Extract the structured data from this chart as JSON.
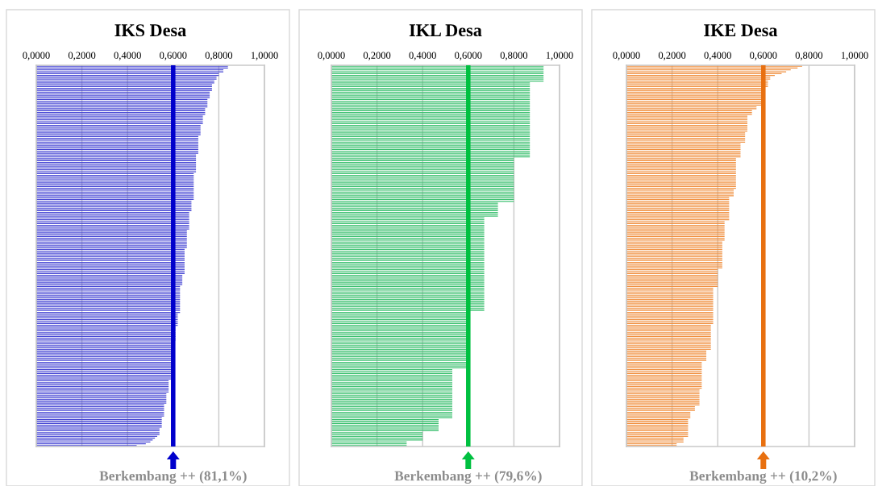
{
  "chart_data": [
    {
      "type": "bar",
      "orientation": "horizontal",
      "title": "IKS Desa",
      "tick_labels": "x",
      "grid": "x",
      "xlim": [
        0,
        1
      ],
      "xticks": [
        {
          "value": 0,
          "label": "0,0000"
        },
        {
          "value": 0.2,
          "label": "0,2000"
        },
        {
          "value": 0.4,
          "label": "0,4000"
        },
        {
          "value": 0.6,
          "label": "0,6000"
        },
        {
          "value": 0.8,
          "label": "0,8000"
        },
        {
          "value": 1,
          "label": "1,0000"
        }
      ],
      "categories": [
        null,
        null,
        null,
        null,
        null,
        null,
        null,
        null,
        null,
        null,
        null,
        null,
        null,
        null,
        null,
        null,
        null,
        null,
        null,
        null,
        null,
        null,
        null,
        null,
        null,
        null,
        null,
        null,
        null,
        null,
        null,
        null,
        null,
        null,
        null,
        null,
        null,
        null,
        null,
        null,
        null,
        null,
        null,
        null,
        null,
        null,
        null,
        null,
        null,
        null,
        null,
        null,
        null,
        null,
        null,
        null,
        null,
        null,
        null,
        null,
        null,
        null,
        null,
        null,
        null,
        null,
        null,
        null,
        null,
        null,
        null,
        null,
        null,
        null,
        null,
        null,
        null,
        null,
        null,
        null,
        null,
        null,
        null,
        null,
        null,
        null,
        null,
        null,
        null,
        null,
        null,
        null,
        null,
        null,
        null,
        null,
        null,
        null,
        null,
        null,
        null,
        null,
        null,
        null,
        null,
        null,
        null,
        null,
        null,
        null,
        null,
        null,
        null,
        null,
        null,
        null,
        null,
        null,
        null,
        null,
        null,
        null,
        null,
        null,
        null,
        null,
        null,
        null,
        null,
        null,
        null,
        null,
        null,
        null,
        null,
        null,
        null,
        null,
        null,
        null,
        null,
        null,
        null,
        null,
        null,
        null,
        null,
        null,
        null,
        null,
        null,
        null,
        null,
        null,
        null,
        null,
        null,
        null,
        null,
        null,
        null,
        null,
        null,
        null,
        null,
        null,
        null,
        null,
        null,
        null,
        null,
        null,
        null,
        null,
        null,
        null,
        null,
        null,
        null,
        null,
        null,
        null,
        null,
        null,
        null,
        null,
        null,
        null,
        null,
        null,
        null,
        null,
        null,
        null,
        null,
        null,
        null,
        null,
        null,
        null,
        null,
        null,
        null,
        null,
        null,
        null
      ],
      "series": [
        {
          "color": "#4848d4",
          "values": [
            0.84,
            0.84,
            0.82,
            0.82,
            0.8,
            0.8,
            0.79,
            0.79,
            0.78,
            0.78,
            0.77,
            0.77,
            0.77,
            0.77,
            0.76,
            0.76,
            0.76,
            0.76,
            0.75,
            0.75,
            0.75,
            0.75,
            0.75,
            0.74,
            0.74,
            0.74,
            0.74,
            0.73,
            0.73,
            0.73,
            0.73,
            0.73,
            0.72,
            0.72,
            0.72,
            0.72,
            0.72,
            0.72,
            0.71,
            0.71,
            0.71,
            0.71,
            0.71,
            0.71,
            0.71,
            0.71,
            0.71,
            0.71,
            0.7,
            0.7,
            0.7,
            0.7,
            0.7,
            0.7,
            0.7,
            0.7,
            0.7,
            0.7,
            0.69,
            0.69,
            0.69,
            0.69,
            0.69,
            0.69,
            0.69,
            0.69,
            0.69,
            0.69,
            0.69,
            0.69,
            0.69,
            0.69,
            0.69,
            0.68,
            0.68,
            0.68,
            0.68,
            0.68,
            0.68,
            0.67,
            0.67,
            0.67,
            0.67,
            0.67,
            0.67,
            0.67,
            0.67,
            0.67,
            0.67,
            0.66,
            0.66,
            0.66,
            0.66,
            0.66,
            0.66,
            0.66,
            0.66,
            0.66,
            0.66,
            0.65,
            0.65,
            0.65,
            0.65,
            0.65,
            0.65,
            0.65,
            0.65,
            0.65,
            0.65,
            0.65,
            0.65,
            0.65,
            0.65,
            0.64,
            0.64,
            0.64,
            0.64,
            0.64,
            0.64,
            0.63,
            0.63,
            0.63,
            0.63,
            0.63,
            0.63,
            0.63,
            0.63,
            0.63,
            0.63,
            0.63,
            0.63,
            0.63,
            0.63,
            0.63,
            0.62,
            0.62,
            0.62,
            0.62,
            0.62,
            0.62,
            0.62,
            0.61,
            0.61,
            0.61,
            0.61,
            0.61,
            0.61,
            0.61,
            0.61,
            0.6,
            0.6,
            0.6,
            0.6,
            0.6,
            0.6,
            0.6,
            0.6,
            0.6,
            0.6,
            0.6,
            0.6,
            0.6,
            0.6,
            0.6,
            0.6,
            0.6,
            0.6,
            0.59,
            0.59,
            0.59,
            0.58,
            0.58,
            0.58,
            0.58,
            0.58,
            0.58,
            0.58,
            0.57,
            0.57,
            0.57,
            0.57,
            0.57,
            0.57,
            0.56,
            0.56,
            0.56,
            0.56,
            0.56,
            0.56,
            0.56,
            0.55,
            0.55,
            0.55,
            0.55,
            0.55,
            0.55,
            0.54,
            0.54,
            0.54,
            0.54,
            0.53,
            0.52,
            0.51,
            0.5,
            0.48,
            0.44
          ]
        }
      ],
      "ref_lines": [
        {
          "axis": "x",
          "value": 0.6,
          "color": "#0000cc"
        }
      ],
      "annotations": [
        "Berkembang ++ (81,1%)"
      ]
    },
    {
      "type": "bar",
      "orientation": "horizontal",
      "title": "IKL Desa",
      "tick_labels": "x",
      "grid": "x",
      "xlim": [
        0,
        1
      ],
      "xticks": [
        {
          "value": 0,
          "label": "0,0000"
        },
        {
          "value": 0.2,
          "label": "0,2000"
        },
        {
          "value": 0.4,
          "label": "0,4000"
        },
        {
          "value": 0.6,
          "label": "0,6000"
        },
        {
          "value": 0.8,
          "label": "0,8000"
        },
        {
          "value": 1,
          "label": "1,0000"
        }
      ],
      "categories": [
        null,
        null,
        null,
        null,
        null,
        null,
        null,
        null,
        null,
        null,
        null,
        null,
        null,
        null,
        null,
        null,
        null,
        null,
        null,
        null,
        null,
        null,
        null,
        null,
        null,
        null,
        null,
        null,
        null,
        null,
        null,
        null,
        null,
        null,
        null,
        null,
        null,
        null,
        null,
        null,
        null,
        null,
        null,
        null,
        null,
        null,
        null,
        null,
        null,
        null,
        null,
        null,
        null,
        null,
        null,
        null,
        null,
        null,
        null,
        null,
        null,
        null,
        null,
        null,
        null,
        null,
        null,
        null,
        null,
        null,
        null,
        null,
        null,
        null,
        null,
        null,
        null,
        null,
        null,
        null,
        null,
        null,
        null,
        null,
        null,
        null,
        null,
        null,
        null,
        null,
        null,
        null,
        null,
        null,
        null,
        null,
        null,
        null,
        null,
        null,
        null,
        null,
        null,
        null,
        null,
        null,
        null,
        null,
        null,
        null,
        null,
        null,
        null,
        null,
        null,
        null,
        null,
        null,
        null,
        null,
        null,
        null,
        null,
        null,
        null,
        null,
        null,
        null,
        null,
        null,
        null,
        null,
        null,
        null,
        null,
        null,
        null,
        null,
        null,
        null,
        null,
        null,
        null,
        null,
        null,
        null,
        null,
        null,
        null,
        null,
        null,
        null,
        null,
        null,
        null,
        null,
        null,
        null,
        null,
        null,
        null,
        null,
        null,
        null,
        null,
        null,
        null,
        null,
        null,
        null,
        null,
        null,
        null,
        null,
        null,
        null,
        null,
        null,
        null,
        null,
        null,
        null,
        null,
        null,
        null,
        null,
        null,
        null,
        null,
        null,
        null,
        null,
        null,
        null,
        null,
        null,
        null,
        null,
        null,
        null,
        null,
        null,
        null,
        null,
        null,
        null
      ],
      "series": [
        {
          "color": "#3cc070",
          "values": [
            0.93,
            0.93,
            0.93,
            0.93,
            0.93,
            0.93,
            0.93,
            0.93,
            0.93,
            0.87,
            0.87,
            0.87,
            0.87,
            0.87,
            0.87,
            0.87,
            0.87,
            0.87,
            0.87,
            0.87,
            0.87,
            0.87,
            0.87,
            0.87,
            0.87,
            0.87,
            0.87,
            0.87,
            0.87,
            0.87,
            0.87,
            0.87,
            0.87,
            0.87,
            0.87,
            0.87,
            0.87,
            0.87,
            0.87,
            0.87,
            0.87,
            0.87,
            0.87,
            0.87,
            0.87,
            0.87,
            0.87,
            0.87,
            0.87,
            0.87,
            0.8,
            0.8,
            0.8,
            0.8,
            0.8,
            0.8,
            0.8,
            0.8,
            0.8,
            0.8,
            0.8,
            0.8,
            0.8,
            0.8,
            0.8,
            0.8,
            0.8,
            0.8,
            0.8,
            0.8,
            0.8,
            0.8,
            0.8,
            0.8,
            0.73,
            0.73,
            0.73,
            0.73,
            0.73,
            0.73,
            0.73,
            0.73,
            0.67,
            0.67,
            0.67,
            0.67,
            0.67,
            0.67,
            0.67,
            0.67,
            0.67,
            0.67,
            0.67,
            0.67,
            0.67,
            0.67,
            0.67,
            0.67,
            0.67,
            0.67,
            0.67,
            0.67,
            0.67,
            0.67,
            0.67,
            0.67,
            0.67,
            0.67,
            0.67,
            0.67,
            0.67,
            0.67,
            0.67,
            0.67,
            0.67,
            0.67,
            0.67,
            0.67,
            0.67,
            0.67,
            0.67,
            0.67,
            0.67,
            0.67,
            0.67,
            0.67,
            0.67,
            0.67,
            0.67,
            0.67,
            0.67,
            0.67,
            0.67,
            0.6,
            0.6,
            0.6,
            0.6,
            0.6,
            0.6,
            0.6,
            0.6,
            0.6,
            0.6,
            0.6,
            0.6,
            0.6,
            0.6,
            0.6,
            0.6,
            0.6,
            0.6,
            0.6,
            0.6,
            0.6,
            0.6,
            0.6,
            0.6,
            0.6,
            0.6,
            0.6,
            0.6,
            0.6,
            0.6,
            0.6,
            0.53,
            0.53,
            0.53,
            0.53,
            0.53,
            0.53,
            0.53,
            0.53,
            0.53,
            0.53,
            0.53,
            0.53,
            0.53,
            0.53,
            0.53,
            0.53,
            0.53,
            0.53,
            0.53,
            0.53,
            0.53,
            0.53,
            0.53,
            0.53,
            0.53,
            0.53,
            0.53,
            0.47,
            0.47,
            0.47,
            0.47,
            0.47,
            0.47,
            0.47,
            0.4,
            0.4,
            0.4,
            0.4,
            0.4,
            0.33,
            0.33,
            0.33
          ]
        }
      ],
      "ref_lines": [
        {
          "axis": "x",
          "value": 0.6,
          "color": "#00c040"
        }
      ],
      "annotations": [
        "Berkembang ++ (79,6%)"
      ]
    },
    {
      "type": "bar",
      "orientation": "horizontal",
      "title": "IKE Desa",
      "tick_labels": "x",
      "grid": "x",
      "xlim": [
        0,
        1
      ],
      "xticks": [
        {
          "value": 0,
          "label": "0,0000"
        },
        {
          "value": 0.2,
          "label": "0,2000"
        },
        {
          "value": 0.4,
          "label": "0,4000"
        },
        {
          "value": 0.6,
          "label": "0,6000"
        },
        {
          "value": 0.8,
          "label": "0,8000"
        },
        {
          "value": 1,
          "label": "1,0000"
        }
      ],
      "categories": [
        null,
        null,
        null,
        null,
        null,
        null,
        null,
        null,
        null,
        null,
        null,
        null,
        null,
        null,
        null,
        null,
        null,
        null,
        null,
        null,
        null,
        null,
        null,
        null,
        null,
        null,
        null,
        null,
        null,
        null,
        null,
        null,
        null,
        null,
        null,
        null,
        null,
        null,
        null,
        null,
        null,
        null,
        null,
        null,
        null,
        null,
        null,
        null,
        null,
        null,
        null,
        null,
        null,
        null,
        null,
        null,
        null,
        null,
        null,
        null,
        null,
        null,
        null,
        null,
        null,
        null,
        null,
        null,
        null,
        null,
        null,
        null,
        null,
        null,
        null,
        null,
        null,
        null,
        null,
        null,
        null,
        null,
        null,
        null,
        null,
        null,
        null,
        null,
        null,
        null,
        null,
        null,
        null,
        null,
        null,
        null,
        null,
        null,
        null,
        null,
        null,
        null,
        null,
        null,
        null,
        null,
        null,
        null,
        null,
        null,
        null,
        null,
        null,
        null,
        null,
        null,
        null,
        null,
        null,
        null,
        null,
        null,
        null,
        null,
        null,
        null,
        null,
        null,
        null,
        null,
        null,
        null,
        null,
        null,
        null,
        null,
        null,
        null,
        null,
        null,
        null,
        null,
        null,
        null,
        null,
        null,
        null,
        null,
        null,
        null,
        null,
        null,
        null,
        null,
        null,
        null,
        null,
        null,
        null,
        null,
        null,
        null,
        null,
        null,
        null,
        null,
        null,
        null,
        null,
        null,
        null,
        null,
        null,
        null,
        null,
        null,
        null,
        null,
        null,
        null,
        null,
        null,
        null,
        null,
        null,
        null,
        null,
        null,
        null,
        null,
        null,
        null,
        null,
        null,
        null,
        null,
        null,
        null,
        null,
        null,
        null,
        null,
        null,
        null,
        null,
        null
      ],
      "series": [
        {
          "color": "#f09040",
          "values": [
            0.77,
            0.75,
            0.72,
            0.7,
            0.68,
            0.65,
            0.63,
            0.63,
            0.62,
            0.62,
            0.62,
            0.62,
            0.6,
            0.6,
            0.6,
            0.6,
            0.6,
            0.6,
            0.6,
            0.6,
            0.6,
            0.59,
            0.57,
            0.57,
            0.55,
            0.55,
            0.55,
            0.53,
            0.53,
            0.53,
            0.53,
            0.53,
            0.53,
            0.53,
            0.53,
            0.53,
            0.52,
            0.52,
            0.52,
            0.52,
            0.52,
            0.52,
            0.5,
            0.5,
            0.5,
            0.5,
            0.5,
            0.5,
            0.5,
            0.5,
            0.48,
            0.48,
            0.48,
            0.48,
            0.48,
            0.48,
            0.48,
            0.48,
            0.48,
            0.48,
            0.48,
            0.48,
            0.48,
            0.48,
            0.48,
            0.48,
            0.48,
            0.47,
            0.47,
            0.47,
            0.47,
            0.45,
            0.45,
            0.45,
            0.45,
            0.45,
            0.45,
            0.45,
            0.45,
            0.45,
            0.45,
            0.45,
            0.45,
            0.45,
            0.43,
            0.43,
            0.43,
            0.43,
            0.43,
            0.43,
            0.43,
            0.43,
            0.43,
            0.43,
            0.43,
            0.42,
            0.42,
            0.42,
            0.42,
            0.42,
            0.42,
            0.42,
            0.42,
            0.42,
            0.42,
            0.42,
            0.42,
            0.42,
            0.42,
            0.42,
            0.4,
            0.4,
            0.4,
            0.4,
            0.4,
            0.4,
            0.4,
            0.4,
            0.4,
            0.4,
            0.38,
            0.38,
            0.38,
            0.38,
            0.38,
            0.38,
            0.38,
            0.38,
            0.38,
            0.38,
            0.38,
            0.38,
            0.38,
            0.38,
            0.38,
            0.38,
            0.38,
            0.38,
            0.38,
            0.38,
            0.37,
            0.37,
            0.37,
            0.37,
            0.37,
            0.37,
            0.37,
            0.37,
            0.37,
            0.37,
            0.37,
            0.37,
            0.37,
            0.37,
            0.35,
            0.35,
            0.35,
            0.35,
            0.35,
            0.35,
            0.33,
            0.33,
            0.33,
            0.33,
            0.33,
            0.33,
            0.33,
            0.33,
            0.33,
            0.33,
            0.33,
            0.33,
            0.33,
            0.33,
            0.33,
            0.32,
            0.32,
            0.32,
            0.32,
            0.32,
            0.32,
            0.32,
            0.32,
            0.32,
            0.3,
            0.3,
            0.3,
            0.28,
            0.28,
            0.28,
            0.28,
            0.27,
            0.27,
            0.27,
            0.27,
            0.27,
            0.27,
            0.27,
            0.27,
            0.27,
            0.27,
            0.25,
            0.25,
            0.25,
            0.22,
            0.22
          ]
        }
      ],
      "ref_lines": [
        {
          "axis": "x",
          "value": 0.6,
          "color": "#e87010"
        }
      ],
      "annotations": [
        "Berkembang ++ (10,2%)"
      ]
    }
  ]
}
